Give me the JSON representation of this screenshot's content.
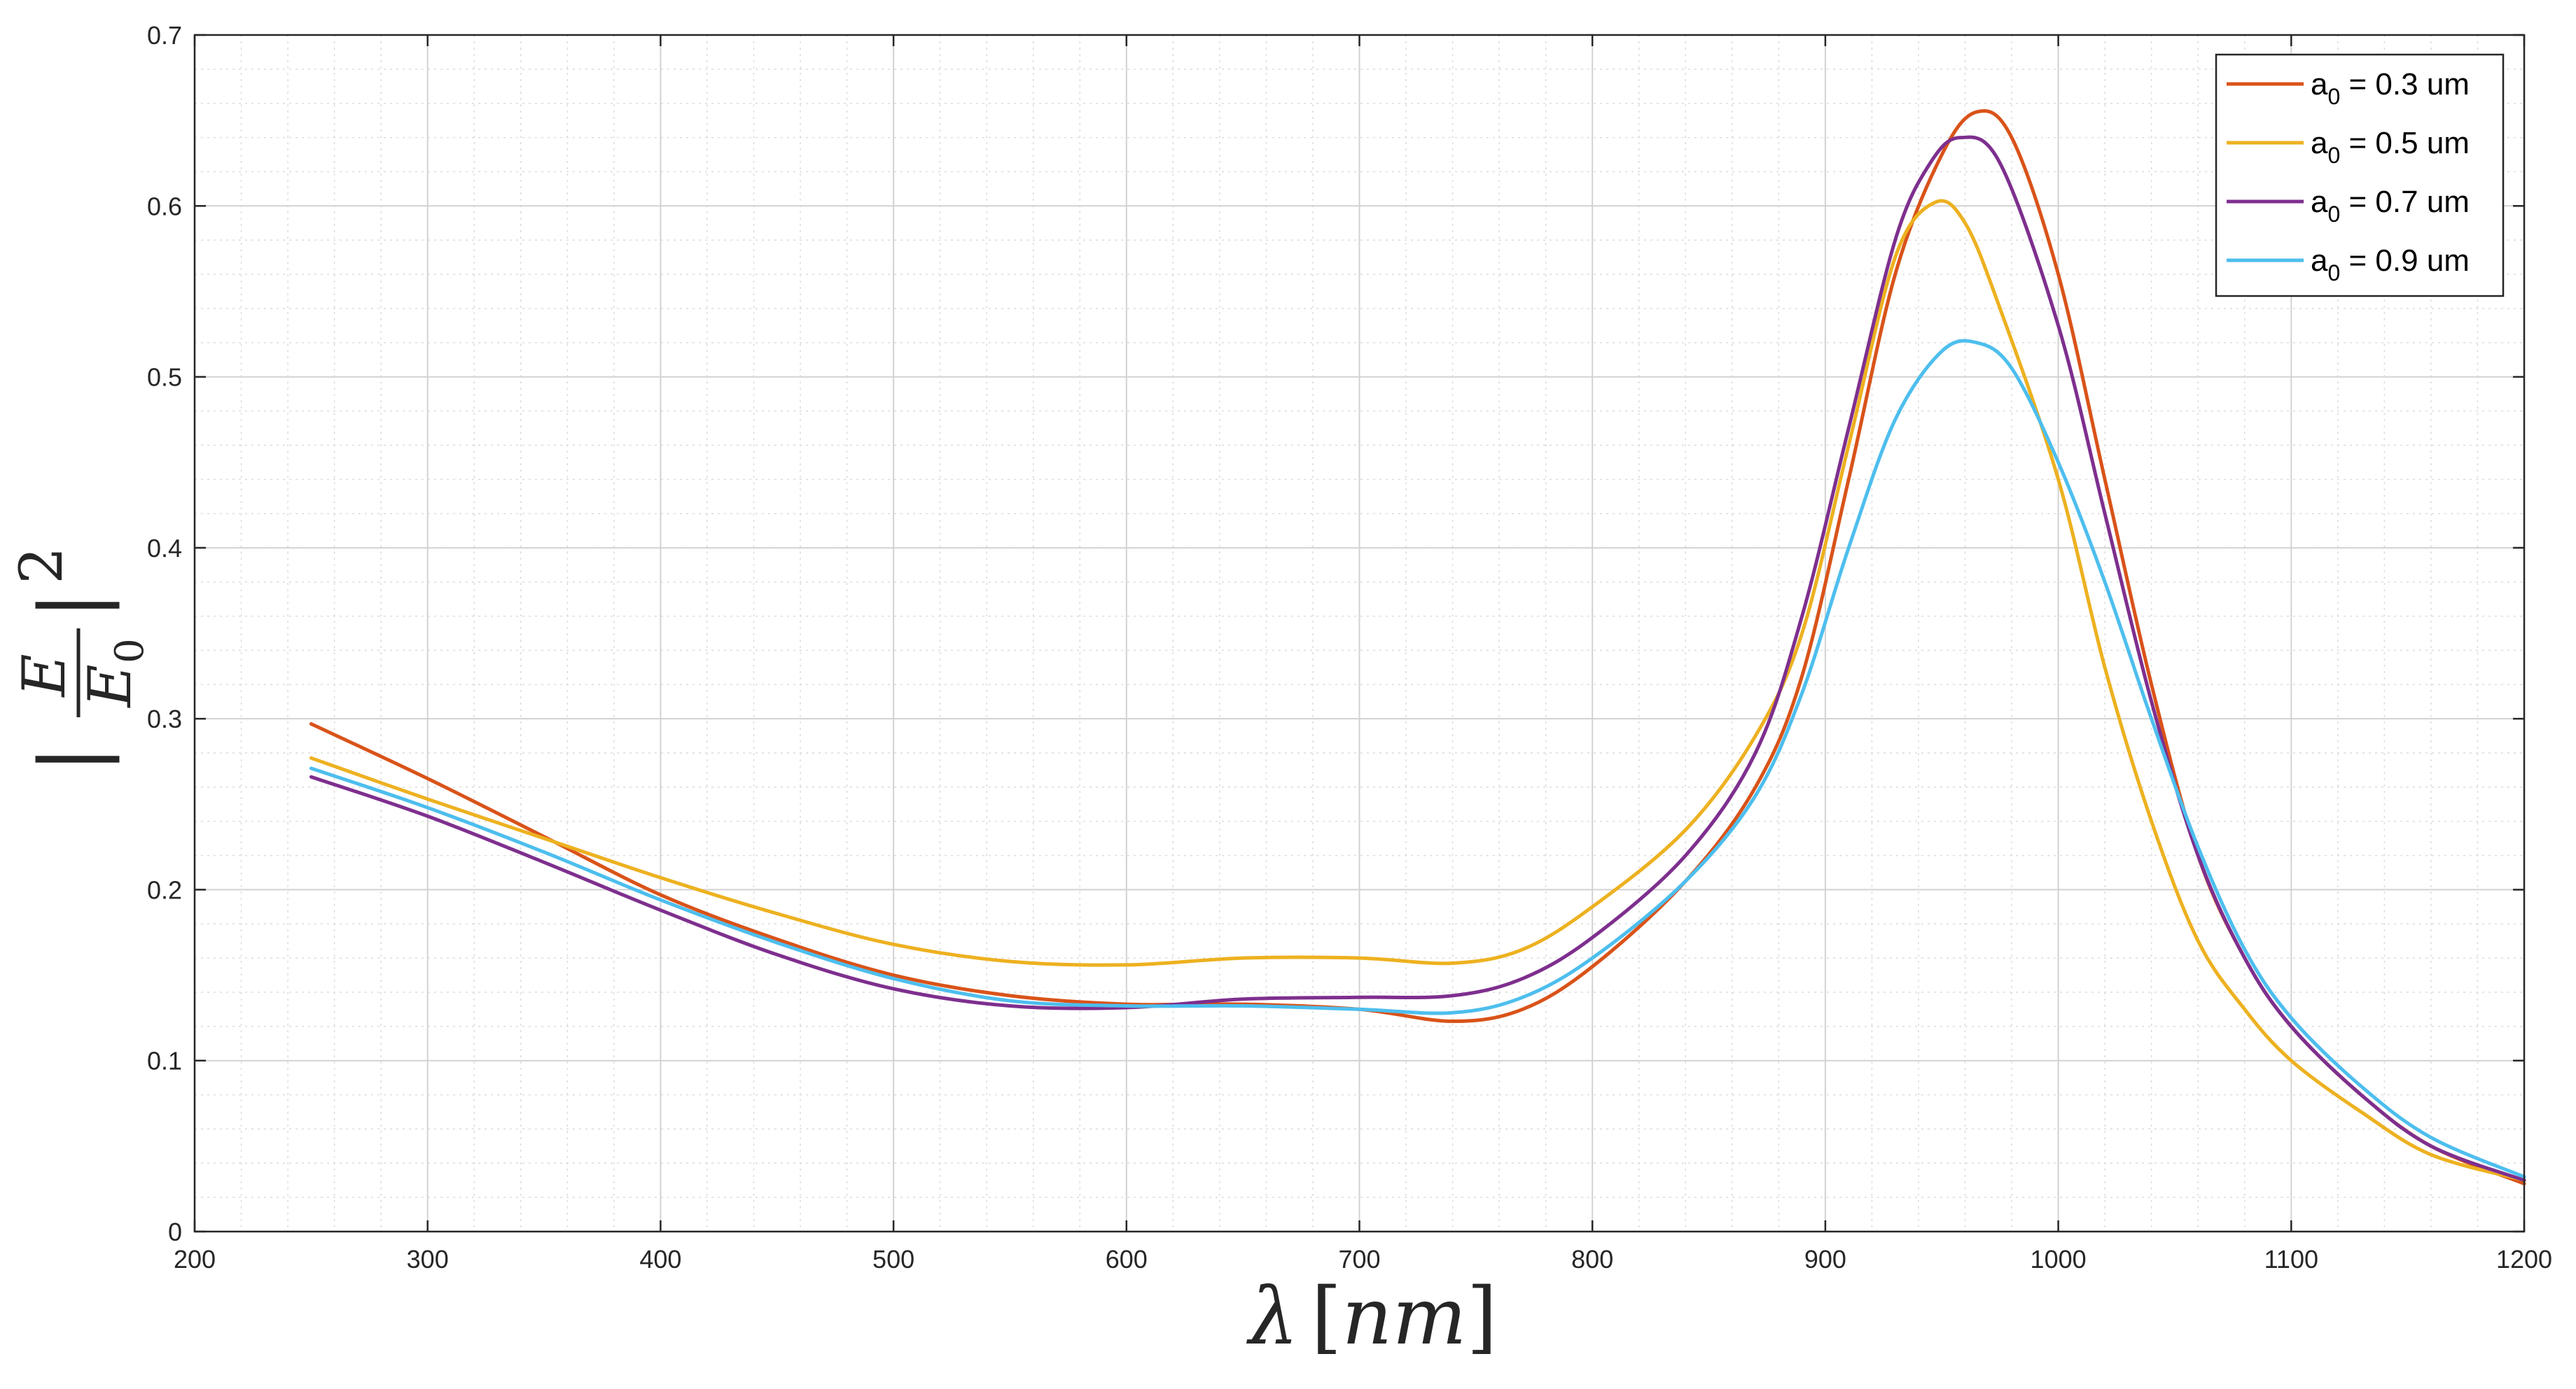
{
  "chart_data": {
    "type": "line",
    "title": "",
    "xlabel": {
      "lambda": "λ",
      "open": "[",
      "unit": "nm",
      "close": "]"
    },
    "ylabel": {
      "bar": "|",
      "numerator": "E",
      "denominator": "E",
      "subscript": "0",
      "exponent": "2"
    },
    "xlim": [
      200,
      1200
    ],
    "ylim": [
      0,
      0.7
    ],
    "xticks": [
      200,
      300,
      400,
      500,
      600,
      700,
      800,
      900,
      1000,
      1100,
      1200
    ],
    "xtick_labels": [
      "200",
      "300",
      "400",
      "500",
      "600",
      "700",
      "800",
      "900",
      "1000",
      "1100",
      "1200"
    ],
    "yticks": [
      0,
      0.1,
      0.2,
      0.3,
      0.4,
      0.5,
      0.6,
      0.7
    ],
    "ytick_labels": [
      "0",
      "0.1",
      "0.2",
      "0.3",
      "0.4",
      "0.5",
      "0.6",
      "0.7"
    ],
    "grid": true,
    "minor_grid": true,
    "legend_position": "top-right",
    "series": [
      {
        "name": "a0 = 0.3 um",
        "legend": {
          "base": "a",
          "sub": "0",
          "rest": " = 0.3 um"
        },
        "color": "#D95319",
        "x": [
          250,
          300,
          350,
          400,
          450,
          500,
          550,
          600,
          650,
          700,
          740,
          770,
          800,
          840,
          870,
          890,
          910,
          930,
          950,
          965,
          980,
          1000,
          1020,
          1040,
          1060,
          1080,
          1100,
          1130,
          1160,
          1200
        ],
        "y": [
          0.297,
          0.265,
          0.231,
          0.197,
          0.171,
          0.15,
          0.138,
          0.133,
          0.133,
          0.13,
          0.123,
          0.13,
          0.155,
          0.205,
          0.26,
          0.325,
          0.44,
          0.56,
          0.63,
          0.655,
          0.64,
          0.56,
          0.44,
          0.32,
          0.22,
          0.16,
          0.12,
          0.08,
          0.05,
          0.028
        ]
      },
      {
        "name": "a0 = 0.5 um",
        "legend": {
          "base": "a",
          "sub": "0",
          "rest": " = 0.5 um"
        },
        "color": "#EDB120",
        "x": [
          250,
          300,
          350,
          400,
          450,
          500,
          550,
          600,
          650,
          700,
          740,
          770,
          800,
          840,
          870,
          890,
          910,
          930,
          947,
          960,
          975,
          1000,
          1020,
          1040,
          1060,
          1080,
          1100,
          1130,
          1160,
          1200
        ],
        "y": [
          0.277,
          0.253,
          0.23,
          0.207,
          0.186,
          0.168,
          0.158,
          0.156,
          0.16,
          0.16,
          0.157,
          0.165,
          0.19,
          0.235,
          0.29,
          0.35,
          0.46,
          0.57,
          0.602,
          0.59,
          0.54,
          0.44,
          0.33,
          0.24,
          0.17,
          0.13,
          0.1,
          0.07,
          0.045,
          0.03
        ]
      },
      {
        "name": "a0 = 0.7 um",
        "legend": {
          "base": "a",
          "sub": "0",
          "rest": " = 0.7 um"
        },
        "color": "#7E2F8E",
        "x": [
          250,
          300,
          350,
          400,
          450,
          500,
          550,
          600,
          650,
          700,
          740,
          770,
          800,
          840,
          870,
          890,
          910,
          930,
          945,
          958,
          975,
          1000,
          1020,
          1040,
          1060,
          1080,
          1100,
          1130,
          1160,
          1200
        ],
        "y": [
          0.266,
          0.243,
          0.216,
          0.188,
          0.162,
          0.142,
          0.132,
          0.131,
          0.136,
          0.137,
          0.138,
          0.148,
          0.172,
          0.22,
          0.28,
          0.36,
          0.47,
          0.58,
          0.625,
          0.64,
          0.625,
          0.53,
          0.42,
          0.31,
          0.22,
          0.16,
          0.12,
          0.08,
          0.05,
          0.03
        ]
      },
      {
        "name": "a0 = 0.9 um",
        "legend": {
          "base": "a",
          "sub": "0",
          "rest": " = 0.9 um"
        },
        "color": "#4DBEEE",
        "x": [
          250,
          300,
          350,
          400,
          450,
          500,
          550,
          600,
          650,
          700,
          740,
          770,
          800,
          840,
          870,
          890,
          910,
          930,
          950,
          965,
          980,
          1000,
          1020,
          1040,
          1060,
          1080,
          1100,
          1130,
          1160,
          1200
        ],
        "y": [
          0.271,
          0.248,
          0.222,
          0.194,
          0.169,
          0.148,
          0.135,
          0.132,
          0.132,
          0.13,
          0.128,
          0.137,
          0.16,
          0.205,
          0.255,
          0.315,
          0.4,
          0.475,
          0.515,
          0.52,
          0.505,
          0.45,
          0.38,
          0.3,
          0.225,
          0.165,
          0.125,
          0.085,
          0.055,
          0.032
        ]
      }
    ]
  }
}
